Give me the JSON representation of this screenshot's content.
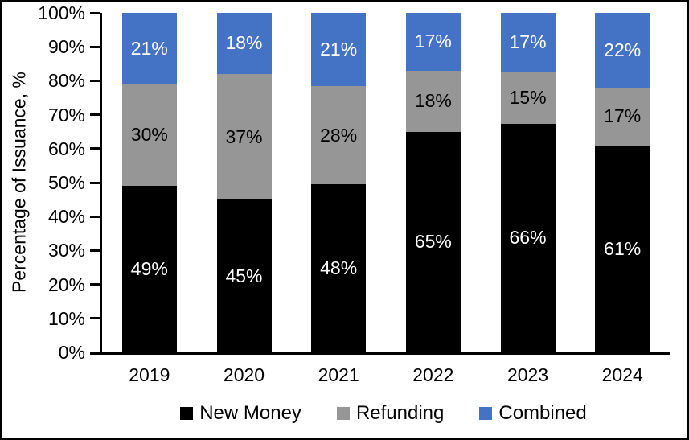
{
  "chart_data": {
    "type": "bar",
    "stacked": true,
    "title": "",
    "xlabel": "",
    "ylabel": "Percentage of Issuance, %",
    "categories": [
      "2019",
      "2020",
      "2021",
      "2022",
      "2023",
      "2024"
    ],
    "series": [
      {
        "name": "New Money",
        "color": "#000000",
        "label_color": "#FFFFFF",
        "values": [
          49,
          45,
          48,
          65,
          66,
          61
        ],
        "labels": [
          "49%",
          "45%",
          "48%",
          "65%",
          "66%",
          "61%"
        ]
      },
      {
        "name": "Refunding",
        "color": "#969696",
        "label_color": "#000000",
        "values": [
          30,
          37,
          28,
          18,
          15,
          17
        ],
        "labels": [
          "30%",
          "37%",
          "28%",
          "18%",
          "15%",
          "17%"
        ]
      },
      {
        "name": "Combined",
        "color": "#4472C4",
        "label_color": "#FFFFFF",
        "values": [
          21,
          18,
          21,
          17,
          17,
          22
        ],
        "labels": [
          "21%",
          "18%",
          "21%",
          "17%",
          "17%",
          "22%"
        ]
      }
    ],
    "ytick_labels": [
      "0%",
      "10%",
      "20%",
      "30%",
      "40%",
      "50%",
      "60%",
      "70%",
      "80%",
      "90%",
      "100%"
    ],
    "ytick_values": [
      0,
      10,
      20,
      30,
      40,
      50,
      60,
      70,
      80,
      90,
      100
    ],
    "ylim": [
      0,
      100
    ],
    "legend": [
      "New Money",
      "Refunding",
      "Combined"
    ],
    "legend_position": "bottom",
    "grid": false,
    "axis_color": "#000000",
    "background": "#FFFFFF"
  }
}
